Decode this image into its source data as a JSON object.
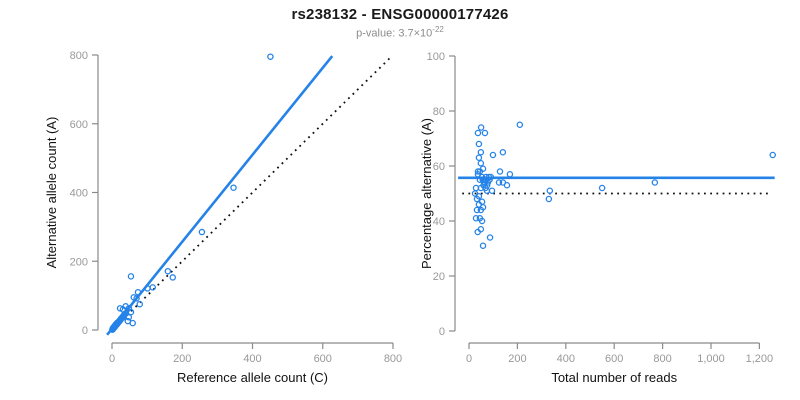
{
  "header": {
    "title": "rs238132 - ENSG00000177426",
    "pvalue_text": "p-value: 3.7×10",
    "pvalue_exponent": "-22"
  },
  "colors": {
    "accent_blue": "#2583e8",
    "dotted_black": "#111111",
    "axis_gray": "#8a8a8a",
    "tick_gray": "#999999"
  },
  "chart_data": [
    {
      "type": "scatter",
      "name": "allele-counts-scatter",
      "xlabel": "Reference allele count (C)",
      "ylabel": "Alternative allele count (A)",
      "xlim": [
        0,
        800
      ],
      "ylim": [
        0,
        800
      ],
      "grid": false,
      "legend": "none",
      "x_ticks": {
        "values": [
          0,
          200,
          400,
          600,
          800
        ],
        "labels": [
          "0",
          "200",
          "400",
          "600",
          "800"
        ]
      },
      "y_ticks": {
        "values": [
          0,
          200,
          400,
          600,
          800
        ],
        "labels": [
          "0",
          "200",
          "400",
          "600",
          "800"
        ]
      },
      "point_color": "#2583e8",
      "lines": [
        {
          "name": "fit-line",
          "style": "solid",
          "color": "#2583e8",
          "x1": -14,
          "y1": -14,
          "x2": 627,
          "y2": 797
        },
        {
          "name": "identity-line",
          "style": "dotted",
          "color": "#111111",
          "x1": 4,
          "y1": 4,
          "x2": 790,
          "y2": 790
        }
      ],
      "points": [
        [
          1,
          1
        ],
        [
          2,
          2
        ],
        [
          2,
          4
        ],
        [
          3,
          3
        ],
        [
          3,
          5
        ],
        [
          4,
          5
        ],
        [
          4,
          7
        ],
        [
          5,
          6
        ],
        [
          5,
          8
        ],
        [
          6,
          7
        ],
        [
          6,
          9
        ],
        [
          7,
          8
        ],
        [
          7,
          10
        ],
        [
          8,
          9
        ],
        [
          8,
          12
        ],
        [
          9,
          11
        ],
        [
          9,
          13
        ],
        [
          10,
          12
        ],
        [
          10,
          15
        ],
        [
          11,
          13
        ],
        [
          11,
          16
        ],
        [
          12,
          15
        ],
        [
          13,
          16
        ],
        [
          13,
          18
        ],
        [
          14,
          17
        ],
        [
          15,
          18
        ],
        [
          15,
          21
        ],
        [
          16,
          20
        ],
        [
          17,
          21
        ],
        [
          18,
          22
        ],
        [
          19,
          24
        ],
        [
          20,
          25
        ],
        [
          21,
          26
        ],
        [
          22,
          28
        ],
        [
          23,
          28
        ],
        [
          24,
          30
        ],
        [
          25,
          31
        ],
        [
          26,
          33
        ],
        [
          27,
          34
        ],
        [
          28,
          35
        ],
        [
          30,
          38
        ],
        [
          32,
          40
        ],
        [
          34,
          43
        ],
        [
          36,
          46
        ],
        [
          38,
          48
        ],
        [
          23,
          63
        ],
        [
          31,
          60
        ],
        [
          39,
          69
        ],
        [
          48,
          63
        ],
        [
          54,
          52
        ],
        [
          31,
          37
        ],
        [
          45,
          26
        ],
        [
          48,
          37
        ],
        [
          59,
          20
        ],
        [
          62,
          95
        ],
        [
          70,
          92
        ],
        [
          74,
          110
        ],
        [
          79,
          75
        ],
        [
          101,
          121
        ],
        [
          116,
          124
        ],
        [
          54,
          156
        ],
        [
          159,
          171
        ],
        [
          173,
          153
        ],
        [
          256,
          285
        ],
        [
          346,
          414
        ],
        [
          451,
          795
        ]
      ]
    },
    {
      "type": "scatter",
      "name": "percentage-vs-reads-scatter",
      "xlabel": "Total number of reads",
      "ylabel": "Percentage alternative (A)",
      "xlim": [
        0,
        1200
      ],
      "ylim": [
        0,
        100
      ],
      "grid": false,
      "legend": "none",
      "x_ticks": {
        "values": [
          0,
          200,
          400,
          600,
          800,
          1000,
          1200
        ],
        "labels": [
          "0",
          "200",
          "400",
          "600",
          "800",
          "1,000",
          "1,200"
        ]
      },
      "y_ticks": {
        "values": [
          0,
          20,
          40,
          60,
          80,
          100
        ],
        "labels": [
          "0",
          "20",
          "40",
          "60",
          "80",
          "100"
        ]
      },
      "point_color": "#2583e8",
      "lines": [
        {
          "name": "fit-line",
          "style": "solid",
          "color": "#2583e8",
          "x1": -45,
          "y1": 55.7,
          "x2": 1263,
          "y2": 55.7
        },
        {
          "name": "null-line",
          "style": "dotted",
          "color": "#111111",
          "x1": -28,
          "y1": 50,
          "x2": 1245,
          "y2": 50
        }
      ],
      "points": [
        [
          50,
          74
        ],
        [
          37,
          72
        ],
        [
          66,
          72
        ],
        [
          41,
          68
        ],
        [
          49,
          65
        ],
        [
          99,
          64
        ],
        [
          140,
          65
        ],
        [
          41,
          63
        ],
        [
          49,
          61
        ],
        [
          58,
          59
        ],
        [
          37,
          58
        ],
        [
          128,
          58
        ],
        [
          169,
          57
        ],
        [
          37,
          57
        ],
        [
          70,
          56
        ],
        [
          45,
          55
        ],
        [
          62,
          55
        ],
        [
          70,
          55
        ],
        [
          78,
          54
        ],
        [
          85,
          55
        ],
        [
          90,
          56
        ],
        [
          66,
          54
        ],
        [
          124,
          54
        ],
        [
          140,
          54
        ],
        [
          157,
          53
        ],
        [
          29,
          52
        ],
        [
          49,
          52
        ],
        [
          74,
          51
        ],
        [
          95,
          51
        ],
        [
          334,
          51
        ],
        [
          25,
          50
        ],
        [
          41,
          49
        ],
        [
          33,
          48
        ],
        [
          54,
          47
        ],
        [
          330,
          48
        ],
        [
          41,
          46
        ],
        [
          58,
          45
        ],
        [
          33,
          44
        ],
        [
          49,
          44
        ],
        [
          29,
          41
        ],
        [
          45,
          41
        ],
        [
          54,
          40
        ],
        [
          49,
          37
        ],
        [
          36,
          36
        ],
        [
          87,
          34
        ],
        [
          58,
          31
        ],
        [
          210,
          75
        ],
        [
          550,
          52
        ],
        [
          768,
          54
        ],
        [
          1255,
          64
        ],
        [
          45,
          58
        ],
        [
          53,
          56
        ],
        [
          60,
          53
        ],
        [
          68,
          52
        ],
        [
          75,
          53
        ],
        [
          82,
          56
        ],
        [
          57,
          55
        ],
        [
          63,
          54
        ]
      ]
    }
  ]
}
